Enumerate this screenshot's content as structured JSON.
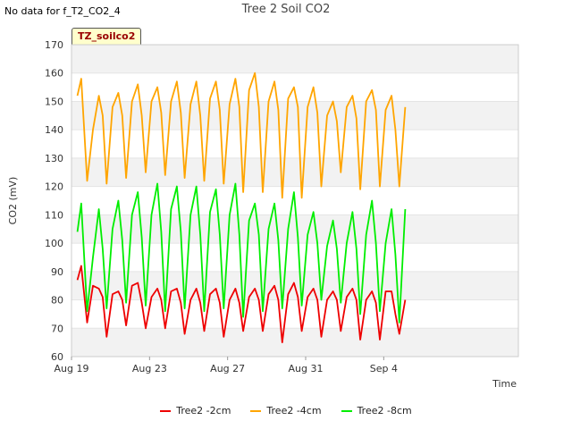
{
  "header": {
    "nodata_text": "No data for f_T2_CO2_4",
    "tag_label": "TZ_soilco2"
  },
  "chart_data": {
    "type": "line",
    "title": "Tree 2 Soil CO2",
    "xlabel": "Time",
    "ylabel": "CO2 (mV)",
    "ylim": [
      60,
      170
    ],
    "yticks": [
      60,
      70,
      80,
      90,
      100,
      110,
      120,
      130,
      140,
      150,
      160,
      170
    ],
    "xlim_days": [
      0,
      22.9
    ],
    "xticks": [
      {
        "day": 0,
        "label": "Aug 19"
      },
      {
        "day": 4,
        "label": "Aug 23"
      },
      {
        "day": 8,
        "label": "Aug 27"
      },
      {
        "day": 12,
        "label": "Aug 31"
      },
      {
        "day": 16,
        "label": "Sep 4"
      }
    ],
    "grid": "horizontal alternating bands",
    "legend_position": "bottom",
    "series": [
      {
        "name": "Tree2 -2cm",
        "color": "#ee0000",
        "x": [
          0.3,
          0.5,
          0.8,
          1.1,
          1.4,
          1.6,
          1.8,
          2.1,
          2.4,
          2.6,
          2.8,
          3.1,
          3.4,
          3.6,
          3.8,
          4.1,
          4.4,
          4.6,
          4.8,
          5.1,
          5.4,
          5.6,
          5.8,
          6.1,
          6.4,
          6.6,
          6.8,
          7.1,
          7.4,
          7.6,
          7.8,
          8.1,
          8.4,
          8.6,
          8.8,
          9.1,
          9.4,
          9.6,
          9.8,
          10.1,
          10.4,
          10.6,
          10.8,
          11.1,
          11.4,
          11.6,
          11.8,
          12.1,
          12.4,
          12.6,
          12.8,
          13.1,
          13.4,
          13.6,
          13.8,
          14.1,
          14.4,
          14.6,
          14.8,
          15.1,
          15.4,
          15.6,
          15.8,
          16.1,
          16.4,
          16.6,
          16.8,
          17.1
        ],
        "y": [
          87,
          92,
          72,
          85,
          84,
          81,
          67,
          82,
          83,
          80,
          71,
          85,
          86,
          79,
          70,
          81,
          84,
          80,
          70,
          83,
          84,
          79,
          68,
          80,
          84,
          79,
          69,
          82,
          84,
          79,
          67,
          80,
          84,
          79,
          69,
          81,
          84,
          80,
          69,
          82,
          85,
          80,
          65,
          82,
          86,
          81,
          69,
          81,
          84,
          80,
          67,
          80,
          83,
          80,
          69,
          81,
          84,
          80,
          66,
          80,
          83,
          79,
          66,
          83,
          83,
          75,
          68,
          80
        ]
      },
      {
        "name": "Tree2 -4cm",
        "color": "#ffa500",
        "x": [
          0.3,
          0.5,
          0.8,
          1.1,
          1.4,
          1.6,
          1.8,
          2.1,
          2.4,
          2.6,
          2.8,
          3.1,
          3.4,
          3.6,
          3.8,
          4.1,
          4.4,
          4.6,
          4.8,
          5.1,
          5.4,
          5.6,
          5.8,
          6.1,
          6.4,
          6.6,
          6.8,
          7.1,
          7.4,
          7.6,
          7.8,
          8.1,
          8.4,
          8.6,
          8.8,
          9.1,
          9.4,
          9.6,
          9.8,
          10.1,
          10.4,
          10.6,
          10.8,
          11.1,
          11.4,
          11.6,
          11.8,
          12.1,
          12.4,
          12.6,
          12.8,
          13.1,
          13.4,
          13.6,
          13.8,
          14.1,
          14.4,
          14.6,
          14.8,
          15.1,
          15.4,
          15.6,
          15.8,
          16.1,
          16.4,
          16.6,
          16.8,
          17.1
        ],
        "y": [
          152,
          158,
          122,
          140,
          152,
          145,
          121,
          148,
          153,
          145,
          123,
          150,
          156,
          145,
          125,
          150,
          155,
          146,
          124,
          150,
          157,
          146,
          123,
          149,
          157,
          145,
          122,
          151,
          157,
          147,
          121,
          149,
          158,
          148,
          118,
          154,
          160,
          148,
          118,
          150,
          157,
          147,
          116,
          151,
          155,
          148,
          116,
          148,
          155,
          146,
          120,
          145,
          150,
          143,
          125,
          148,
          152,
          144,
          119,
          150,
          154,
          147,
          120,
          147,
          152,
          140,
          120,
          148
        ]
      },
      {
        "name": "Tree2 -8cm",
        "color": "#00ee00",
        "x": [
          0.3,
          0.5,
          0.8,
          1.1,
          1.4,
          1.6,
          1.8,
          2.1,
          2.4,
          2.6,
          2.8,
          3.1,
          3.4,
          3.6,
          3.8,
          4.1,
          4.4,
          4.6,
          4.8,
          5.1,
          5.4,
          5.6,
          5.8,
          6.1,
          6.4,
          6.6,
          6.8,
          7.1,
          7.4,
          7.6,
          7.8,
          8.1,
          8.4,
          8.6,
          8.8,
          9.1,
          9.4,
          9.6,
          9.8,
          10.1,
          10.4,
          10.6,
          10.8,
          11.1,
          11.4,
          11.6,
          11.8,
          12.1,
          12.4,
          12.6,
          12.8,
          13.1,
          13.4,
          13.6,
          13.8,
          14.1,
          14.4,
          14.6,
          14.8,
          15.1,
          15.4,
          15.6,
          15.8,
          16.1,
          16.4,
          16.6,
          16.8,
          17.1
        ],
        "y": [
          104,
          114,
          76,
          95,
          112,
          98,
          77,
          105,
          115,
          101,
          79,
          110,
          118,
          102,
          78,
          110,
          121,
          104,
          76,
          112,
          120,
          104,
          77,
          110,
          120,
          103,
          76,
          111,
          119,
          103,
          77,
          110,
          121,
          103,
          74,
          108,
          114,
          103,
          76,
          105,
          114,
          101,
          77,
          105,
          118,
          102,
          78,
          103,
          111,
          100,
          80,
          99,
          108,
          98,
          79,
          100,
          111,
          98,
          75,
          103,
          115,
          100,
          76,
          100,
          112,
          96,
          72,
          112
        ]
      }
    ]
  }
}
